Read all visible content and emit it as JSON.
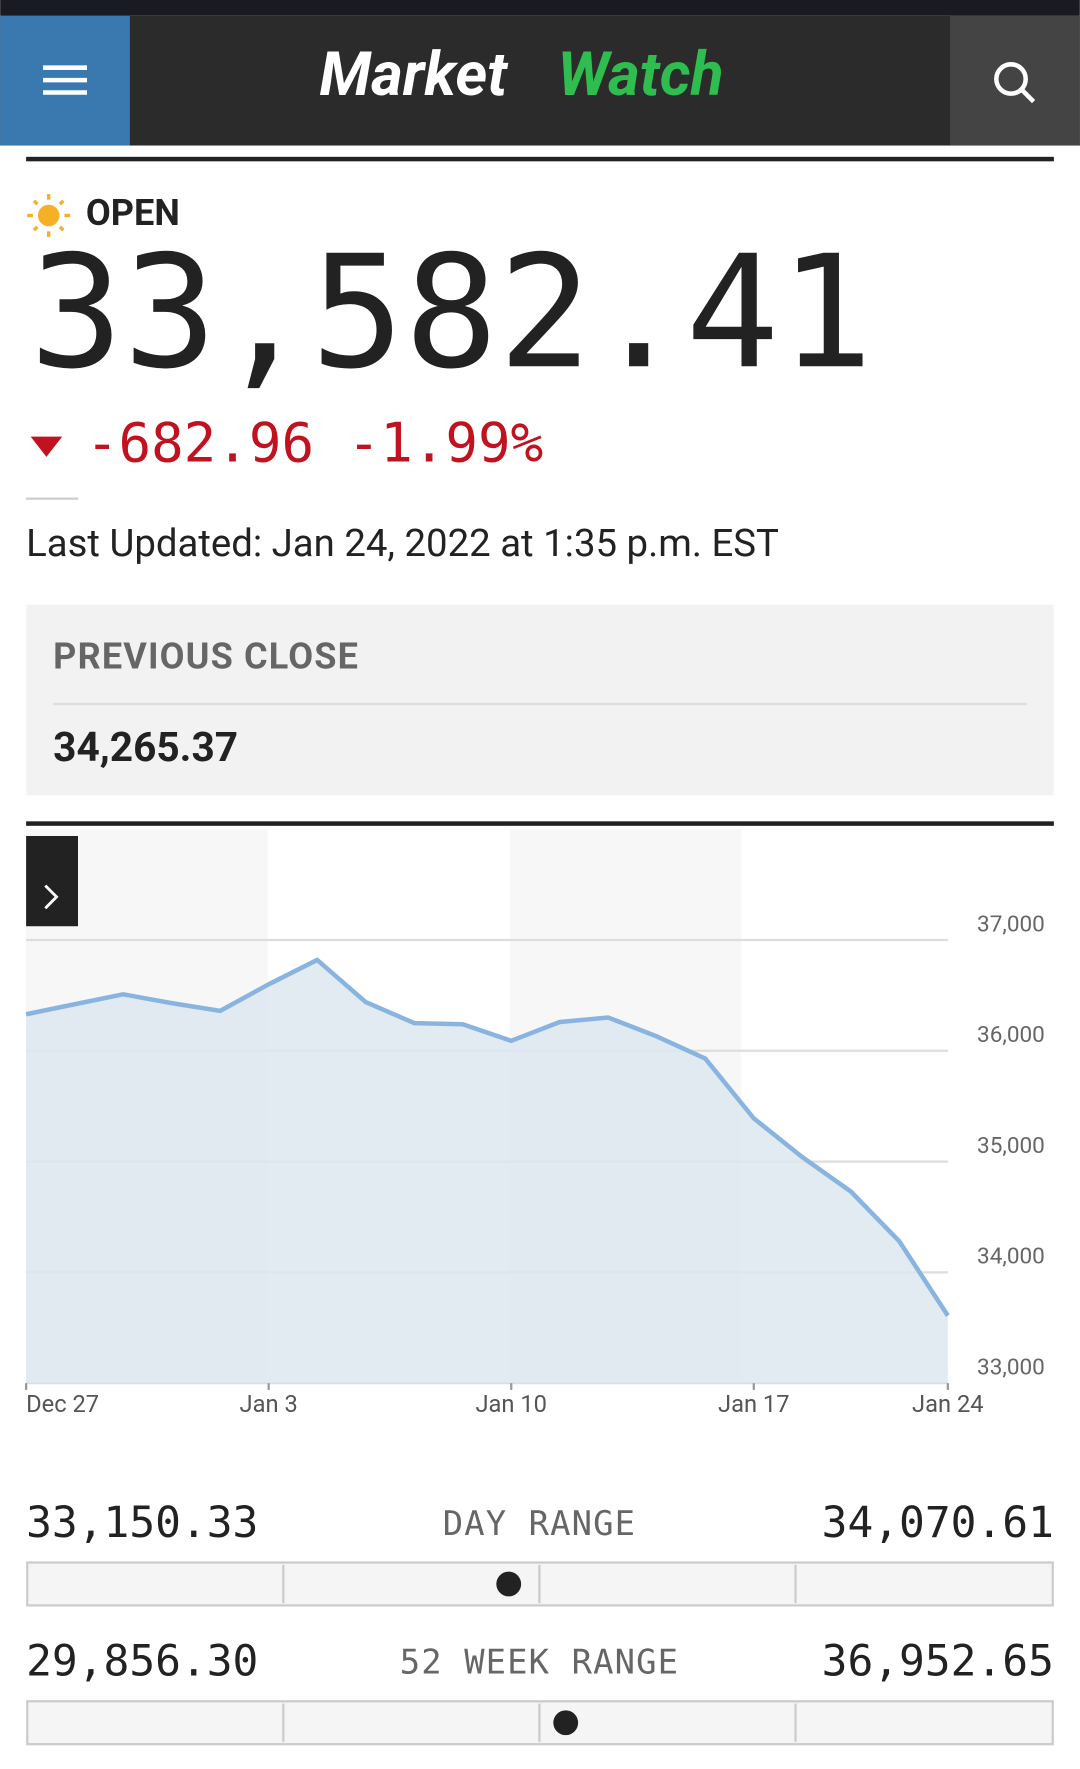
{
  "header": {
    "logo_market": "Market",
    "logo_watch": "Watch"
  },
  "quote": {
    "status": "OPEN",
    "price": {
      "value": 33582.41,
      "label": "33,582.41"
    },
    "change": "-682.96",
    "change_percent": "-1.99%",
    "last_updated": "Last Updated: Jan 24, 2022 at 1:35 p.m. EST"
  },
  "previous_close": {
    "label": "PREVIOUS CLOSE",
    "value": "34,265.37"
  },
  "chart_data": {
    "type": "line",
    "color": "#8ab4e0",
    "area_color": "#dde7f0",
    "categories": [
      "Dec 27",
      null,
      null,
      null,
      null,
      "Jan 3",
      null,
      null,
      null,
      null,
      "Jan 10",
      null,
      null,
      null,
      null,
      "Jan 17",
      null,
      null,
      null,
      "Jan 24"
    ],
    "values": [
      36330,
      36420,
      36510,
      36430,
      36360,
      36600,
      36820,
      36440,
      36250,
      36240,
      36090,
      36260,
      36300,
      36130,
      35930,
      35390,
      35040,
      34730,
      34280,
      33610
    ],
    "ylim": [
      33000,
      38000
    ],
    "yticks": [
      {
        "value": 33000,
        "label": "33,000"
      },
      {
        "value": 34000,
        "label": "34,000"
      },
      {
        "value": 35000,
        "label": "35,000"
      },
      {
        "value": 36000,
        "label": "36,000"
      },
      {
        "value": 37000,
        "label": "37,000"
      }
    ],
    "grid": true
  },
  "ranges": [
    {
      "label": "DAY RANGE",
      "low": {
        "value": 33150.33,
        "label": "33,150.33"
      },
      "high": {
        "value": 34070.61,
        "label": "34,070.61"
      }
    },
    {
      "label": "52 WEEK RANGE",
      "low": {
        "value": 29856.3,
        "label": "29,856.30"
      },
      "high": {
        "value": 36952.65,
        "label": "36,952.65"
      }
    }
  ]
}
